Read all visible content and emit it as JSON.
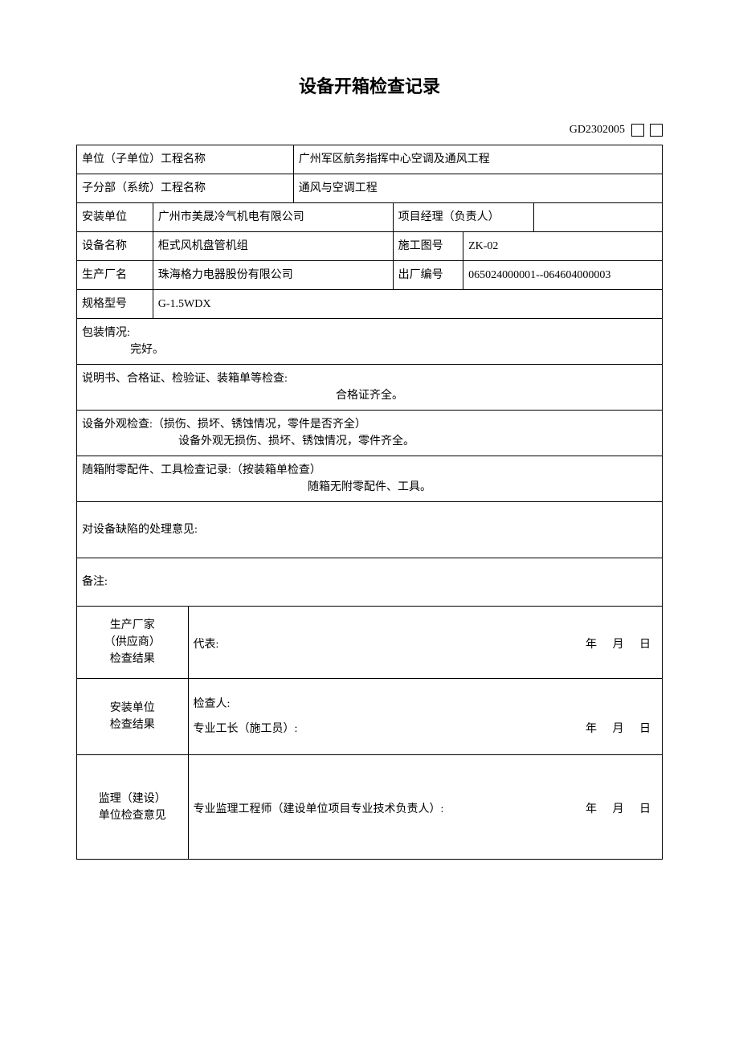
{
  "title": "设备开箱检查记录",
  "doc_code": "GD2302005",
  "labels": {
    "unit_project_name": "单位（子单位）工程名称",
    "sub_system_name": "子分部（系统）工程名称",
    "install_unit": "安装单位",
    "project_manager": "项目经理（负责人）",
    "device_name": "设备名称",
    "drawing_no": "施工图号",
    "manufacturer": "生产厂名",
    "factory_no": "出厂编号",
    "spec_model": "规格型号"
  },
  "values": {
    "unit_project_name": "广州军区航务指挥中心空调及通风工程",
    "sub_system_name": "通风与空调工程",
    "install_unit": "广州市美晟冷气机电有限公司",
    "project_manager": "",
    "device_name": "柜式风机盘管机组",
    "drawing_no": "ZK-02",
    "manufacturer": "珠海格力电器股份有限公司",
    "factory_no": "065024000001--064604000003",
    "spec_model": "G-1.5WDX"
  },
  "sections": {
    "packaging_label": "包装情况:",
    "packaging_value": "完好。",
    "docs_label": "说明书、合格证、检验证、装箱单等检查:",
    "docs_value": "合格证齐全。",
    "appearance_label": "设备外观检查:（损伤、损坏、锈蚀情况，零件是否齐全）",
    "appearance_value": "设备外观无损伤、损坏、锈蚀情况，零件齐全。",
    "accessories_label": "随箱附零配件、工具检查记录:（按装箱单检查）",
    "accessories_value": "随箱无附零配件、工具。",
    "defect_label": "对设备缺陷的处理意见:",
    "remark_label": "备注:"
  },
  "signatures": {
    "supplier_label": "生产厂家\n（供应商）\n检查结果",
    "supplier_rep": "代表:",
    "installer_label": "安装单位\n检查结果",
    "installer_checker": "检查人:",
    "installer_foreman": "专业工长（施工员）:",
    "supervisor_label": "监理（建设）\n单位检查意见",
    "supervisor_engineer": "专业监理工程师（建设单位项目专业技术负责人）:",
    "date_year": "年",
    "date_month": "月",
    "date_day": "日"
  },
  "layout": {
    "col_widths_pct": [
      13,
      6,
      18,
      17,
      12,
      12,
      22
    ]
  }
}
